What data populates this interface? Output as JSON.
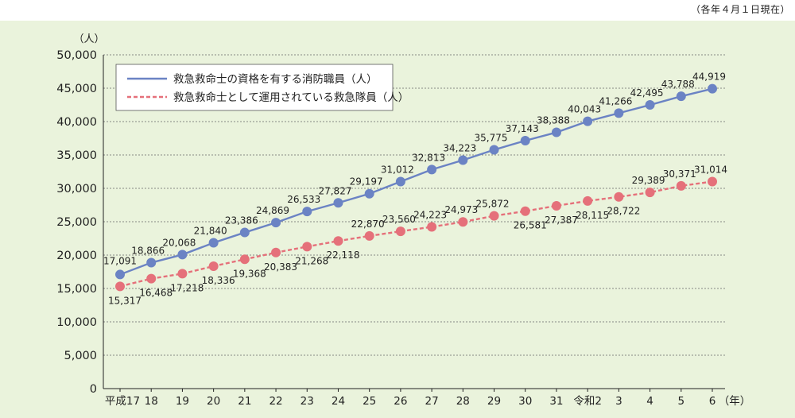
{
  "note": "（各年４月１日現在）",
  "chart_data": {
    "type": "line",
    "ylabel": "（人）",
    "xunit": "（年）",
    "ylim": [
      0,
      50000
    ],
    "yticks": [
      "50,000",
      "45,000",
      "40,000",
      "35,000",
      "30,000",
      "25,000",
      "20,000",
      "15,000",
      "10,000",
      "5,000",
      "0"
    ],
    "grid": true,
    "legend_position": "top-left",
    "categories": [
      "平成17",
      "18",
      "19",
      "20",
      "21",
      "22",
      "23",
      "24",
      "25",
      "26",
      "27",
      "28",
      "29",
      "30",
      "31",
      "令和2",
      "3",
      "4",
      "5",
      "6"
    ],
    "series": [
      {
        "name": "救急救命士の資格を有する消防職員（人）",
        "color": "#6b83c4",
        "style": "solid",
        "values": [
          17091,
          18866,
          20068,
          21840,
          23386,
          24869,
          26533,
          27827,
          29197,
          31012,
          32813,
          34223,
          35775,
          37143,
          38388,
          40043,
          41266,
          42495,
          43788,
          44919
        ],
        "labels": [
          "17,091",
          "18,866",
          "20,068",
          "21,840",
          "23,386",
          "24,869",
          "26,533",
          "27,827",
          "29,197",
          "31,012",
          "32,813",
          "34,223",
          "35,775",
          "37,143",
          "38,388",
          "40,043",
          "41,266",
          "42,495",
          "43,788",
          "44,919"
        ]
      },
      {
        "name": "救急救命士として運用されている救急隊員（人）",
        "color": "#e5707a",
        "style": "dashed",
        "values": [
          15317,
          16468,
          17218,
          18336,
          19368,
          20383,
          21268,
          22118,
          22870,
          23560,
          24223,
          24973,
          25872,
          26581,
          27387,
          28115,
          28722,
          29389,
          30371,
          31014
        ],
        "labels": [
          "15,317",
          "16,468",
          "17,218",
          "18,336",
          "19,368",
          "20,383",
          "21,268",
          "22,118",
          "22,870",
          "23,560",
          "24,223",
          "24,973",
          "25,872",
          "26,581",
          "27,387",
          "28,115",
          "28,722",
          "29,389",
          "30,371",
          "31,014"
        ]
      }
    ]
  }
}
